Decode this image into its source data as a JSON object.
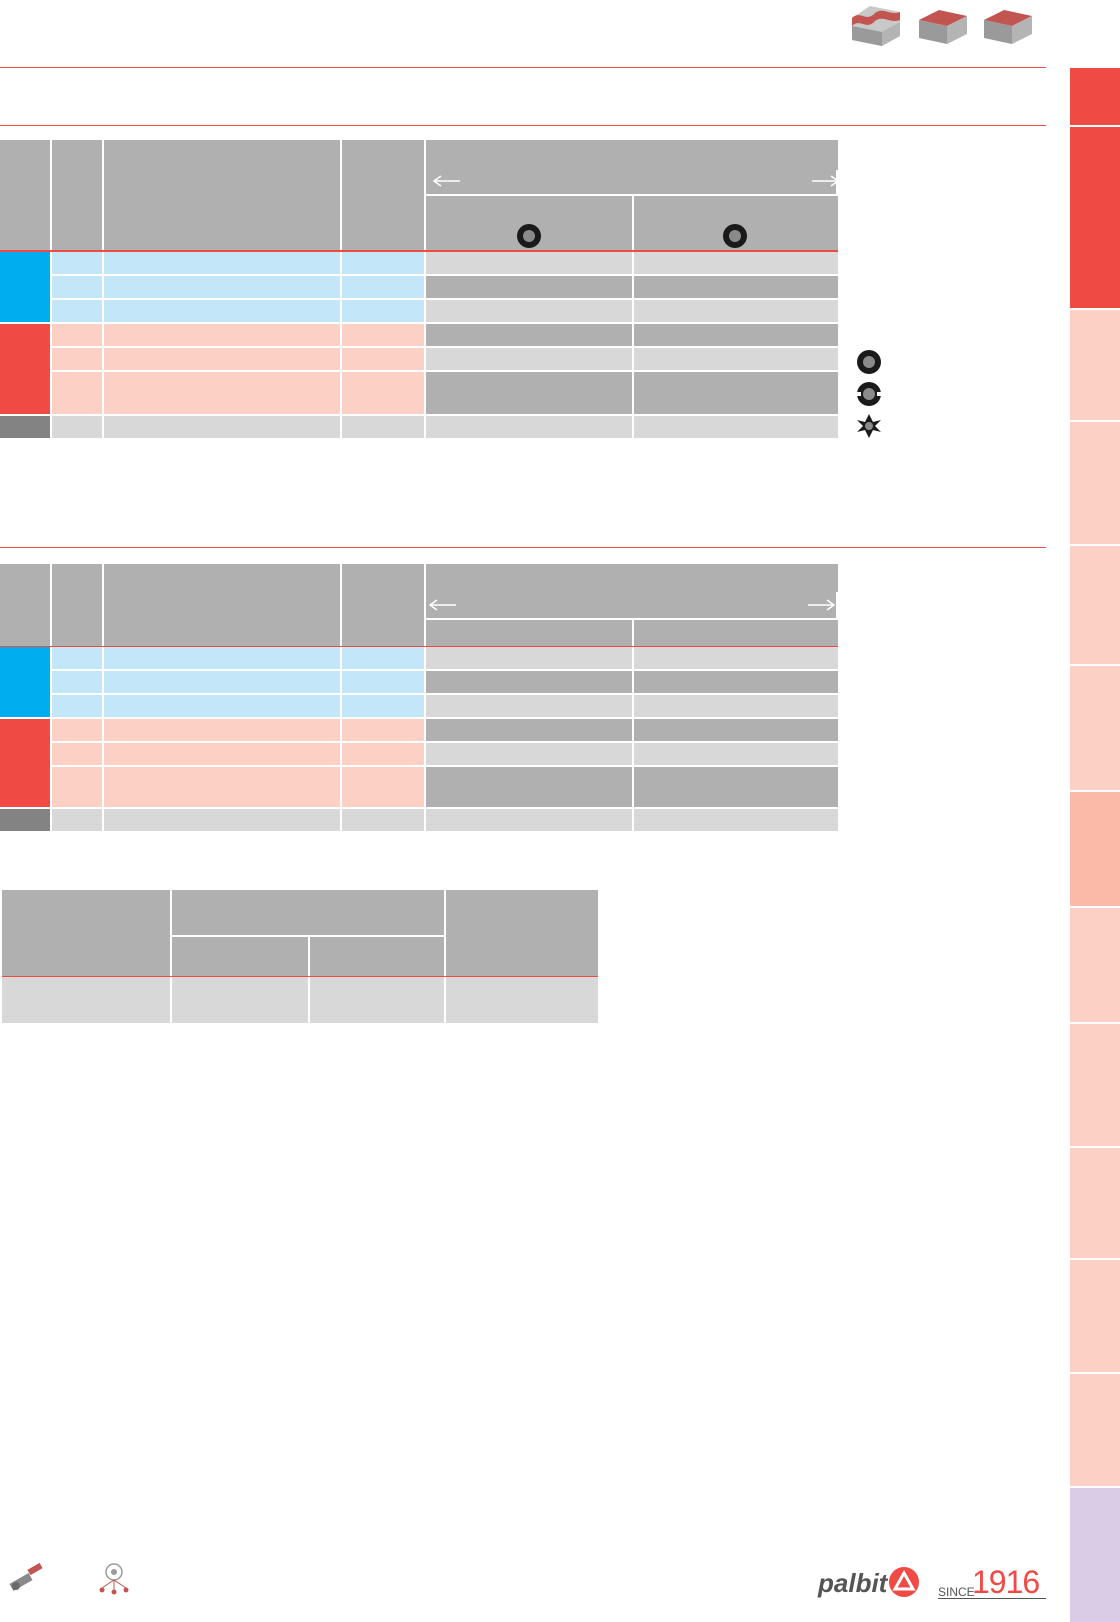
{
  "colors": {
    "accent_red": "#f04a44",
    "blue": "#00aeef",
    "light_blue": "#c3e6f8",
    "pink": "#fdd0c6",
    "grey_header": "#b0b0b0",
    "grey_light": "#d8d8d8",
    "grey_dark": "#838383",
    "side_purple": "#dacce6"
  },
  "icons": {
    "top_shapes": [
      "contour-surface-icon",
      "slot-surface-icon",
      "flat-surface-icon"
    ],
    "legend": [
      "full-ring-insert-icon",
      "notched-ring-insert-icon",
      "cross-insert-icon"
    ],
    "footer": [
      "turning-tool-icon",
      "tool-selection-icon",
      "palbit-logo-icon"
    ]
  },
  "brand": {
    "logo_text": "palbit",
    "since_label": "SINCE",
    "since_year": "1916"
  }
}
